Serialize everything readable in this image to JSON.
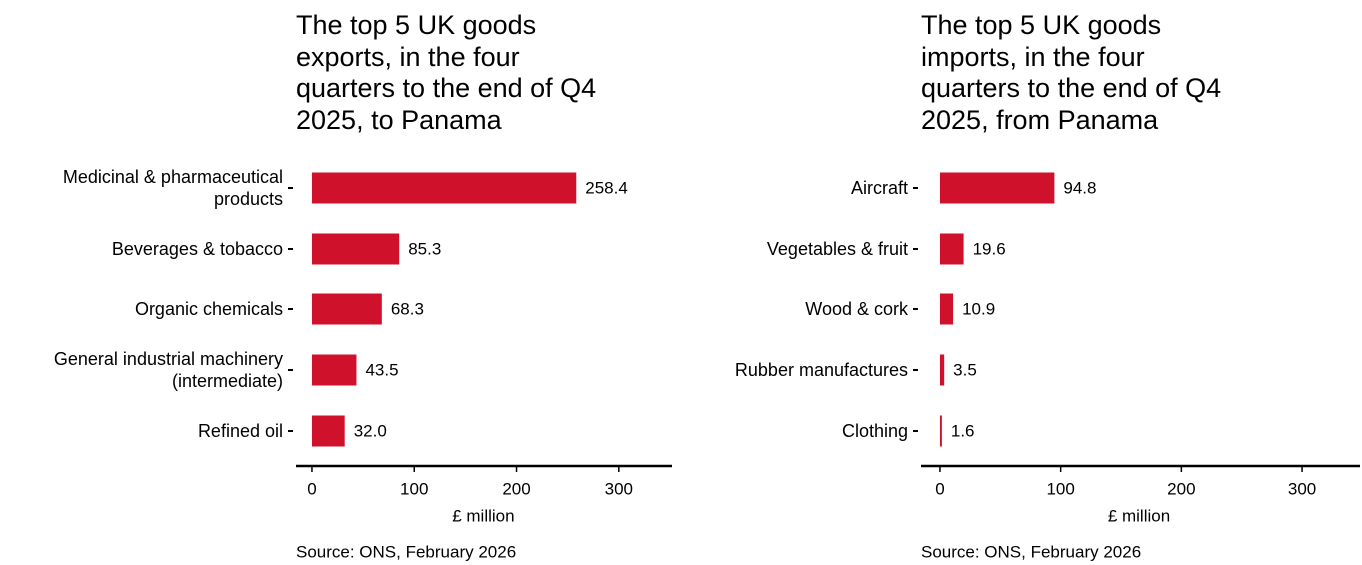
{
  "chart_data": [
    {
      "type": "barh",
      "title": "The top 5 UK goods\nexports, in the four\nquarters to the end of Q4\n2025, to Panama",
      "categories": [
        "Medicinal & pharmaceutical\nproducts",
        "Beverages & tobacco",
        "Organic chemicals",
        "General industrial machinery\n(intermediate)",
        "Refined oil"
      ],
      "values": [
        258.4,
        85.3,
        68.3,
        43.5,
        32.0
      ],
      "value_labels": [
        "258.4",
        "85.3",
        "68.3",
        "43.5",
        "32.0"
      ],
      "color": "#d0112b",
      "xlim": [
        -15.6,
        352
      ],
      "xticks": [
        0,
        100,
        200,
        300
      ],
      "xlabel": "£ million",
      "source": "Source: ONS, February 2026"
    },
    {
      "type": "barh",
      "title": "The top 5 UK goods\nimports, in the four\nquarters to the end of Q4\n2025, from Panama",
      "categories": [
        "Aircraft",
        "Vegetables & fruit",
        "Wood & cork",
        "Rubber manufactures",
        "Clothing"
      ],
      "values": [
        94.8,
        19.6,
        10.9,
        3.5,
        1.6
      ],
      "value_labels": [
        "94.8",
        "19.6",
        "10.9",
        "3.5",
        "1.6"
      ],
      "color": "#d0112b",
      "xlim": [
        -15.7,
        348
      ],
      "xticks": [
        0,
        100,
        200,
        300
      ],
      "xlabel": "£ million",
      "source": "Source: ONS, February 2026"
    }
  ]
}
